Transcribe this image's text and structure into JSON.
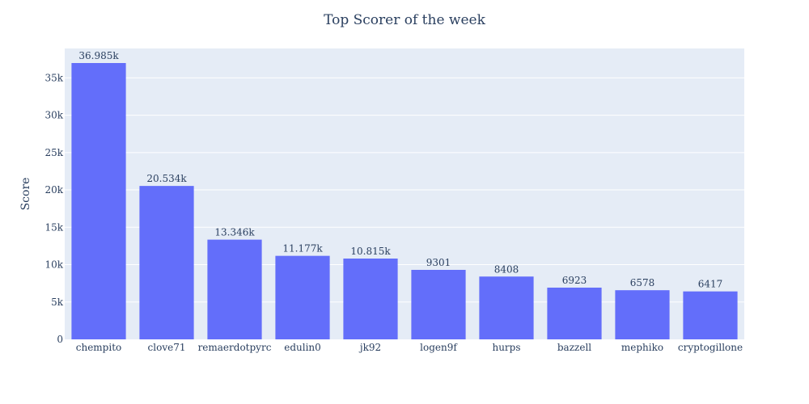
{
  "chart_data": {
    "type": "bar",
    "title": "Top Scorer of the week",
    "xlabel": "",
    "ylabel": "Score",
    "categories": [
      "chempito",
      "clove71",
      "remaerdotpyrc",
      "edulin0",
      "jk92",
      "logen9f",
      "hurps",
      "bazzell",
      "mephiko",
      "cryptogillone"
    ],
    "values": [
      36985,
      20534,
      13346,
      11177,
      10815,
      9301,
      8408,
      6923,
      6578,
      6417
    ],
    "data_labels": [
      "36.985k",
      "20.534k",
      "13.346k",
      "11.177k",
      "10.815k",
      "9301",
      "8408",
      "6923",
      "6578",
      "6417"
    ],
    "ylim": [
      0,
      38932
    ],
    "yticks": [
      0,
      5000,
      10000,
      15000,
      20000,
      25000,
      30000,
      35000
    ],
    "ytick_labels": [
      "0",
      "5k",
      "10k",
      "15k",
      "20k",
      "25k",
      "30k",
      "35k"
    ],
    "grid": true,
    "colors": {
      "bar": "#636efa",
      "plot_bg": "#e5ecf6",
      "grid": "#ffffff",
      "text": "#2a3f5f"
    }
  }
}
